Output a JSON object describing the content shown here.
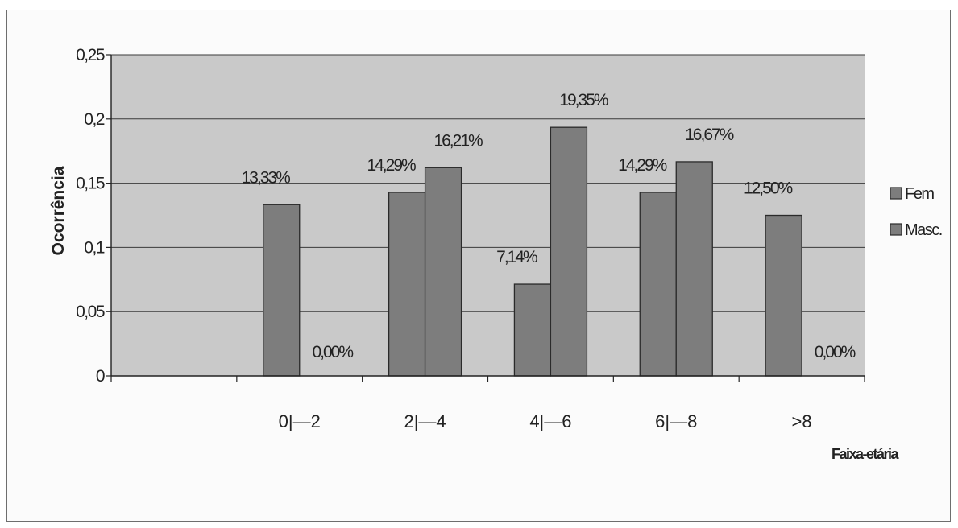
{
  "chart_data": {
    "type": "bar",
    "title": "",
    "xlabel": "Faixa-etária",
    "ylabel": "Ocorrência",
    "ylim": [
      0,
      0.25
    ],
    "yticks": [
      0,
      0.05,
      0.1,
      0.15,
      0.2,
      0.25
    ],
    "ytick_labels": [
      "0",
      "0,05",
      "0,1",
      "0,15",
      "0,2",
      "0,25"
    ],
    "categories": [
      "",
      "0|—2",
      "2|—4",
      "4|—6",
      "6|—8",
      ">8"
    ],
    "series": [
      {
        "name": "Fem",
        "values": [
          null,
          0.1333,
          0.1429,
          0.0714,
          0.1429,
          0.125
        ],
        "labels": [
          "",
          "13,33%",
          "14,29%",
          "7,14%",
          "14,29%",
          "12,50%"
        ]
      },
      {
        "name": "Masc.",
        "values": [
          null,
          0.0,
          0.1621,
          0.1935,
          0.1667,
          0.0
        ],
        "labels": [
          "",
          "0,00%",
          "16,21%",
          "19,35%",
          "16,67%",
          "0,00%"
        ]
      }
    ],
    "grid": true,
    "legend_position": "right",
    "colors": {
      "plot_background": "#c9c9c9",
      "bar_fill": "#7d7d7d",
      "bar_stroke": "#2a2a2a",
      "gridline": "#3a3a3a"
    }
  }
}
